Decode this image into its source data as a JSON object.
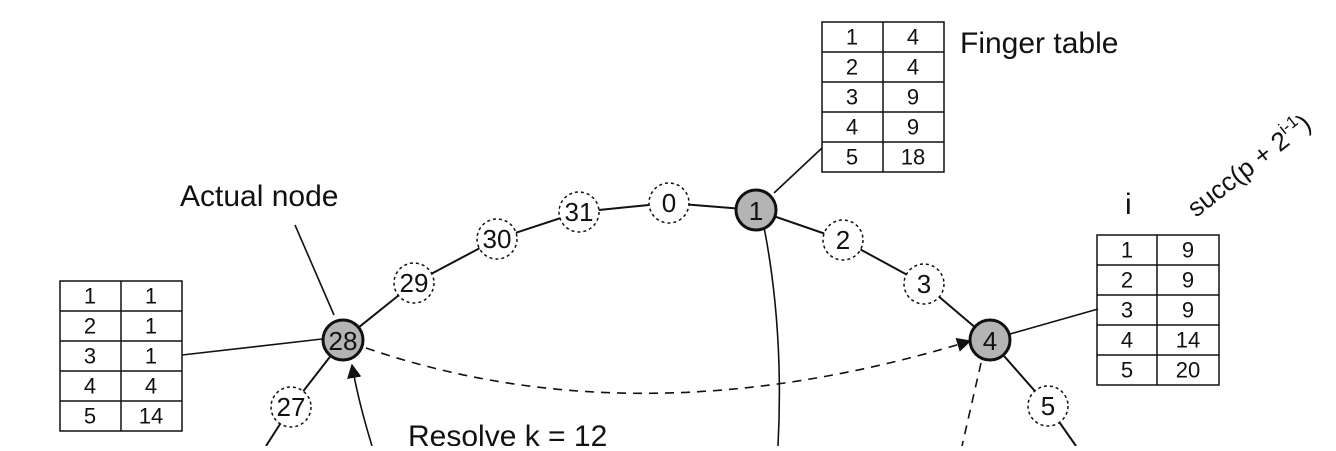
{
  "labels": {
    "finger_table": "Finger table",
    "actual_node": "Actual node",
    "column_i": "i",
    "column_succ": "succ(p + 2",
    "column_succ_exp": "i-1",
    "column_succ_close": ")",
    "resolve": "Resolve k = 12"
  },
  "ring": {
    "actual_nodes": [
      "1",
      "4",
      "28"
    ],
    "virtual_nodes": [
      "0",
      "31",
      "30",
      "29",
      "2",
      "3",
      "5",
      "27"
    ]
  },
  "finger_tables": [
    {
      "node": "1",
      "rows": [
        [
          "1",
          "4"
        ],
        [
          "2",
          "4"
        ],
        [
          "3",
          "9"
        ],
        [
          "4",
          "9"
        ],
        [
          "5",
          "18"
        ]
      ]
    },
    {
      "node": "4",
      "rows": [
        [
          "1",
          "9"
        ],
        [
          "2",
          "9"
        ],
        [
          "3",
          "9"
        ],
        [
          "4",
          "14"
        ],
        [
          "5",
          "20"
        ]
      ]
    },
    {
      "node": "28",
      "rows": [
        [
          "1",
          "1"
        ],
        [
          "2",
          "1"
        ],
        [
          "3",
          "1"
        ],
        [
          "4",
          "4"
        ],
        [
          "5",
          "14"
        ]
      ]
    }
  ],
  "colors": {
    "actual_node_fill": "#b4b4b4",
    "virtual_node_fill": "#ffffff",
    "stroke": "#111111"
  }
}
